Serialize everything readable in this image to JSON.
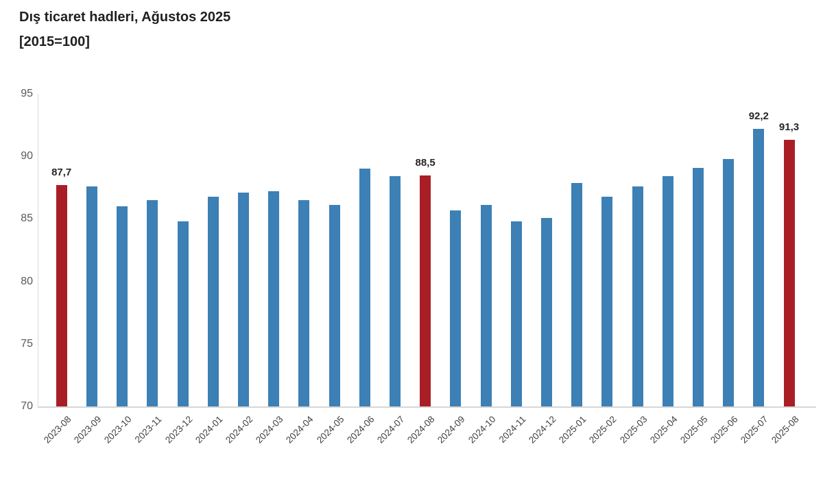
{
  "header": {
    "title": "Dış ticaret hadleri, Ağustos 2025",
    "subtitle": "[2015=100]"
  },
  "chart_data": {
    "type": "bar",
    "title": "Dış ticaret hadleri, Ağustos 2025",
    "subtitle": "[2015=100]",
    "xlabel": "",
    "ylabel": "",
    "ylim": [
      70,
      95
    ],
    "yticks": [
      95,
      90,
      85,
      80,
      75,
      70
    ],
    "grid": false,
    "legend": null,
    "categories": [
      "2023-08",
      "2023-09",
      "2023-10",
      "2023-11",
      "2023-12",
      "2024-01",
      "2024-02",
      "2024-03",
      "2024-04",
      "2024-05",
      "2024-06",
      "2024-07",
      "2024-08",
      "2024-09",
      "2024-10",
      "2024-11",
      "2024-12",
      "2025-01",
      "2025-02",
      "2025-03",
      "2025-04",
      "2025-05",
      "2025-06",
      "2025-07",
      "2025-08"
    ],
    "values": [
      87.7,
      87.6,
      86.0,
      86.5,
      84.8,
      86.8,
      87.1,
      87.2,
      86.5,
      86.1,
      89.0,
      88.4,
      88.5,
      85.7,
      86.1,
      84.8,
      85.1,
      87.9,
      86.8,
      87.6,
      88.4,
      89.1,
      89.8,
      92.2,
      91.3
    ],
    "highlight_indices": [
      0,
      12,
      24
    ],
    "annotations": [
      {
        "index": 0,
        "label": "87,7"
      },
      {
        "index": 12,
        "label": "88,5"
      },
      {
        "index": 23,
        "label": "92,2"
      },
      {
        "index": 24,
        "label": "91,3"
      }
    ],
    "colors": {
      "bar_default": "#3c80b5",
      "bar_highlight": "#a91e25",
      "axis_line": "#d9d9d9",
      "tick_text": "#595959",
      "annotation_text": "#262626",
      "title_text": "#1f1f1f"
    }
  }
}
